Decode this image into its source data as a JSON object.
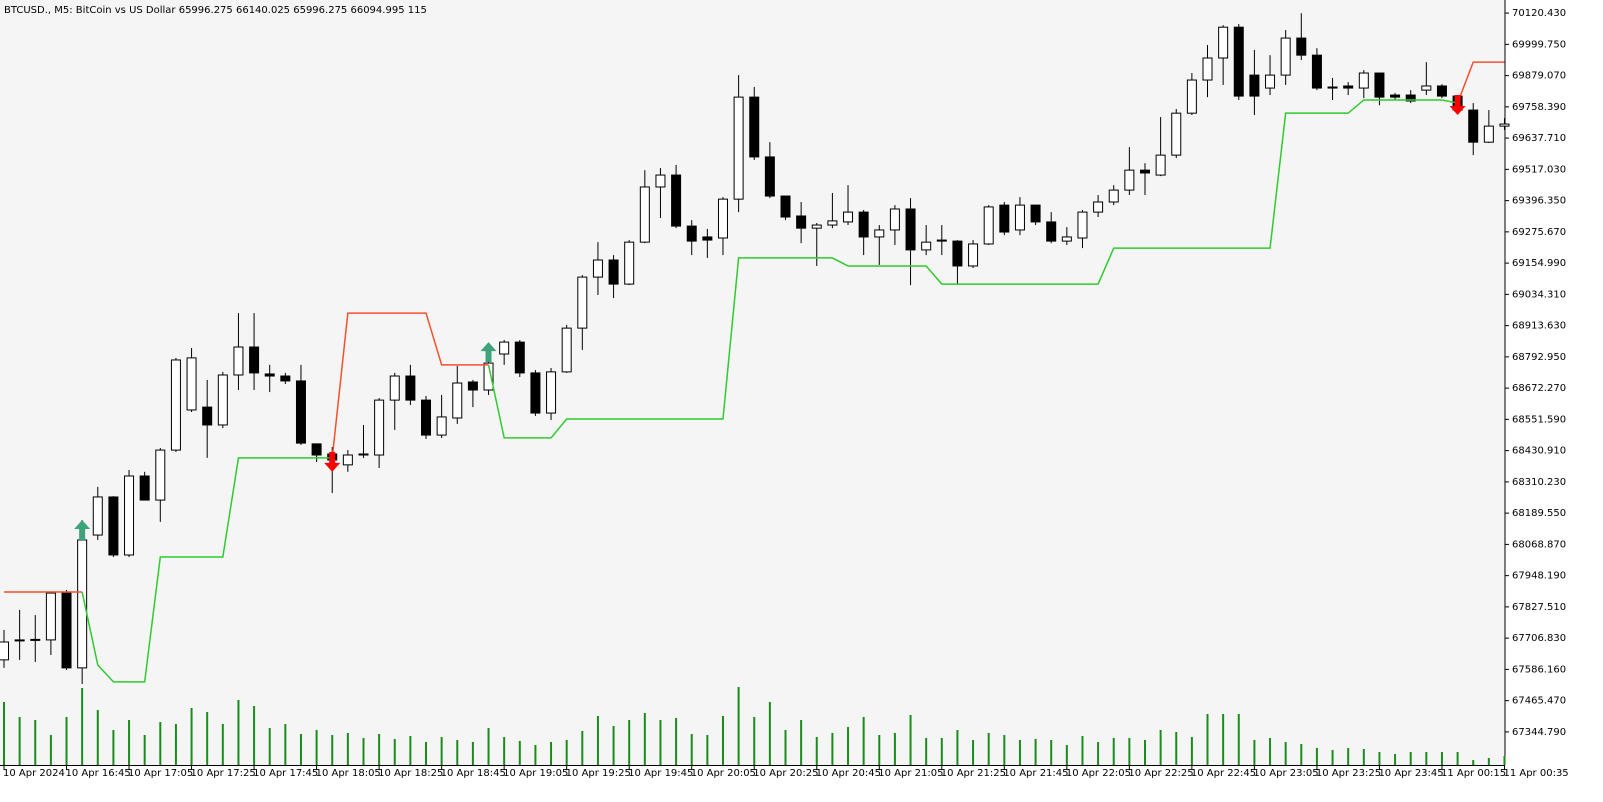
{
  "chart_data": {
    "type": "candlestick",
    "title": "BTCUSD., M5:  BitCoin vs US Dollar  65996.275 66140.025 65996.275 66094.995  115",
    "categories": [
      "10 Apr 2024",
      null,
      null,
      null,
      "10 Apr 16:45",
      null,
      null,
      null,
      "10 Apr 17:05",
      null,
      null,
      null,
      "10 Apr 17:25",
      null,
      null,
      null,
      "10 Apr 17:45",
      null,
      null,
      null,
      "10 Apr 18:05",
      null,
      null,
      null,
      "10 Apr 18:25",
      null,
      null,
      null,
      "10 Apr 18:45",
      null,
      null,
      null,
      "10 Apr 19:05",
      null,
      null,
      null,
      "10 Apr 19:25",
      null,
      null,
      null,
      "10 Apr 19:45",
      null,
      null,
      null,
      "10 Apr 20:05",
      null,
      null,
      null,
      "10 Apr 20:25",
      null,
      null,
      null,
      "10 Apr 20:45",
      null,
      null,
      null,
      "10 Apr 21:05",
      null,
      null,
      null,
      "10 Apr 21:25",
      null,
      null,
      null,
      "10 Apr 21:45",
      null,
      null,
      null,
      "10 Apr 22:05",
      null,
      null,
      null,
      "10 Apr 22:25",
      null,
      null,
      null,
      "10 Apr 22:45",
      null,
      null,
      null,
      "10 Apr 23:05",
      null,
      null,
      null,
      "10 Apr 23:25",
      null,
      null,
      null,
      "10 Apr 23:45",
      null,
      null,
      null,
      "11 Apr 00:15",
      null,
      null,
      null,
      "11 Apr 00:35"
    ],
    "open": [
      67623,
      67700,
      67700,
      67700,
      67881,
      67592,
      68105,
      68252,
      68028,
      68333,
      68240,
      68433,
      68588,
      68599,
      68530,
      68723,
      68831,
      68727,
      68719,
      68700,
      68457,
      68418,
      68376,
      68414,
      68414,
      68626,
      68719,
      68626,
      68491,
      68557,
      68696,
      68665,
      68804,
      68850,
      68731,
      68576,
      68735,
      68904,
      69101,
      69167,
      69074,
      69236,
      69449,
      69495,
      69298,
      69256,
      69252,
      69402,
      69796,
      69565,
      69414,
      69337,
      69290,
      69302,
      69314,
      69352,
      69256,
      69283,
      69364,
      69206,
      69240,
      69240,
      69144,
      69229,
      69379,
      69283,
      69379,
      69314,
      69240,
      69252,
      69352,
      69391,
      69437,
      69514,
      69495,
      69572,
      69734,
      69862,
      69947,
      70066,
      69881,
      69831,
      69881,
      70024,
      69958,
      69831,
      69839,
      69831,
      69889,
      69804,
      69804,
      69823,
      69839,
      69800,
      69746,
      69622,
      69684
    ],
    "high": [
      67739,
      67816,
      67796,
      67885,
      67893,
      68163,
      68291,
      68255,
      68356,
      68349,
      68441,
      68789,
      68827,
      68704,
      68735,
      68962,
      68962,
      68762,
      68731,
      68762,
      68457,
      68445,
      68433,
      68530,
      68634,
      68731,
      68762,
      68642,
      68646,
      68758,
      68704,
      68800,
      68858,
      68858,
      68742,
      68750,
      68916,
      69109,
      69236,
      69186,
      69244,
      69514,
      69522,
      69534,
      69321,
      69287,
      69410,
      69881,
      69835,
      69622,
      69414,
      69391,
      69310,
      69426,
      69456,
      69360,
      69302,
      69379,
      69406,
      69302,
      69302,
      69244,
      69244,
      69379,
      69391,
      69410,
      69379,
      69352,
      69294,
      69360,
      69418,
      69456,
      69603,
      69541,
      69719,
      69750,
      69889,
      69997,
      70074,
      70078,
      69978,
      69958,
      70055,
      70120,
      69985,
      69870,
      69854,
      69900,
      69889,
      69812,
      69823,
      69931,
      69846,
      69804,
      69773,
      69746,
      69715
    ],
    "low": [
      67592,
      67623,
      67615,
      67642,
      67584,
      67530,
      68086,
      68020,
      68020,
      68240,
      68156,
      68426,
      68580,
      68403,
      68518,
      68665,
      68665,
      68657,
      68688,
      68453,
      68387,
      68267,
      68349,
      68403,
      68364,
      68511,
      68607,
      68476,
      68480,
      68534,
      68599,
      68646,
      68762,
      68715,
      68565,
      68549,
      68731,
      68820,
      69032,
      69020,
      69070,
      69232,
      69329,
      69290,
      69186,
      69175,
      69186,
      69352,
      69553,
      69406,
      69321,
      69232,
      69144,
      69290,
      69302,
      69186,
      69148,
      69225,
      69070,
      69186,
      69186,
      69074,
      69136,
      69225,
      69263,
      69263,
      69302,
      69232,
      69225,
      69213,
      69333,
      69379,
      69418,
      69418,
      69491,
      69561,
      69727,
      69796,
      69843,
      69785,
      69727,
      69804,
      69843,
      69939,
      69823,
      69785,
      69804,
      69792,
      69765,
      69785,
      69773,
      69804,
      69792,
      69738,
      69572,
      69619,
      69669
    ],
    "close": [
      67692,
      67698,
      67702,
      67881,
      67592,
      68086,
      68252,
      68028,
      68333,
      68240,
      68433,
      68781,
      68789,
      68530,
      68723,
      68831,
      68731,
      68719,
      68700,
      68460,
      68414,
      68395,
      68414,
      68418,
      68626,
      68719,
      68626,
      68491,
      68561,
      68692,
      68665,
      68769,
      68850,
      68731,
      68576,
      68735,
      68904,
      69101,
      69167,
      69074,
      69236,
      69449,
      69495,
      69298,
      69240,
      69244,
      69402,
      69796,
      69565,
      69414,
      69333,
      69290,
      69302,
      69318,
      69352,
      69256,
      69283,
      69364,
      69206,
      69236,
      69244,
      69144,
      69229,
      69372,
      69275,
      69379,
      69314,
      69240,
      69256,
      69352,
      69391,
      69437,
      69514,
      69503,
      69572,
      69734,
      69862,
      69947,
      70066,
      69800,
      69800,
      69881,
      70024,
      69958,
      69831,
      69835,
      69831,
      69889,
      69796,
      69796,
      69781,
      69839,
      69800,
      69746,
      69622,
      69684,
      69692
    ],
    "volume": [
      63,
      48,
      45,
      30,
      48,
      77,
      55,
      35,
      45,
      30,
      43,
      41,
      57,
      53,
      41,
      65,
      59,
      37,
      41,
      31,
      35,
      30,
      32,
      27,
      31,
      26,
      29,
      23,
      28,
      25,
      23,
      37,
      28,
      24,
      20,
      23,
      25,
      34,
      49,
      39,
      45,
      52,
      45,
      47,
      31,
      30,
      49,
      78,
      48,
      63,
      35,
      45,
      28,
      32,
      38,
      48,
      30,
      32,
      50,
      27,
      27,
      35,
      25,
      32,
      30,
      25,
      26,
      25,
      20,
      29,
      23,
      27,
      27,
      25,
      35,
      33,
      28,
      51,
      51,
      51,
      25,
      27,
      23,
      21,
      17,
      15,
      17,
      16,
      13,
      11,
      13,
      13,
      13,
      13,
      5,
      7,
      9
    ],
    "volume_color": "#1a8c1a",
    "up_color": "#ffffff",
    "down_color": "#000000",
    "series": [
      {
        "color": "#f5502e",
        "values": [
          67885,
          67885,
          67885,
          67885,
          67885,
          67885,
          null,
          null,
          null,
          null,
          null,
          null,
          null,
          null,
          null,
          null,
          null,
          null,
          null,
          null,
          null,
          68403,
          68962,
          68962,
          68962,
          68962,
          68962,
          68962,
          68762,
          68762,
          68762,
          68762,
          null,
          null,
          null,
          null,
          null,
          null,
          null,
          null,
          null,
          null,
          null,
          null,
          null,
          null,
          null,
          null,
          null,
          null,
          null,
          null,
          null,
          null,
          null,
          null,
          null,
          null,
          null,
          null,
          null,
          null,
          null,
          null,
          null,
          null,
          null,
          null,
          null,
          null,
          null,
          null,
          null,
          null,
          null,
          null,
          null,
          null,
          null,
          null,
          null,
          null,
          null,
          null,
          null,
          null,
          null,
          null,
          null,
          null,
          null,
          null,
          null,
          69773,
          69931,
          69931,
          69931
        ]
      },
      {
        "color": "#2ecc2e",
        "values": [
          null,
          null,
          null,
          null,
          null,
          67885,
          67603,
          67538,
          67538,
          67538,
          68020,
          68020,
          68020,
          68020,
          68020,
          68403,
          68403,
          68403,
          68403,
          68403,
          68403,
          68403,
          null,
          null,
          null,
          null,
          null,
          null,
          null,
          null,
          null,
          68762,
          68480,
          68480,
          68480,
          68480,
          68553,
          68553,
          68553,
          68553,
          68553,
          68553,
          68553,
          68553,
          68553,
          68553,
          68553,
          69175,
          69175,
          69175,
          69175,
          69175,
          69175,
          69175,
          69144,
          69144,
          69144,
          69144,
          69144,
          69144,
          69074,
          69074,
          69074,
          69074,
          69074,
          69074,
          69074,
          69074,
          69074,
          69074,
          69074,
          69213,
          69213,
          69213,
          69213,
          69213,
          69213,
          69213,
          69213,
          69213,
          69213,
          69213,
          69734,
          69734,
          69734,
          69734,
          69734,
          69785,
          69785,
          69785,
          69785,
          69785,
          69785,
          69773,
          null,
          null,
          null
        ]
      }
    ],
    "arrows": [
      {
        "index": 5,
        "price": 68163,
        "direction": "up",
        "color": "#3fa27a"
      },
      {
        "index": 21,
        "price": 68349,
        "direction": "down",
        "color": "#ff0000"
      },
      {
        "index": 31,
        "price": 68850,
        "direction": "up",
        "color": "#3fa27a"
      },
      {
        "index": 93,
        "price": 69727,
        "direction": "down",
        "color": "#ff0000"
      }
    ],
    "ylim": [
      67217,
      70171
    ],
    "yticks": [
      {
        "value": 70120.43,
        "label": "70120.430"
      },
      {
        "value": 69999.75,
        "label": "69999.750"
      },
      {
        "value": 69879.07,
        "label": "69879.070"
      },
      {
        "value": 69758.39,
        "label": "69758.390"
      },
      {
        "value": 69637.71,
        "label": "69637.710"
      },
      {
        "value": 69517.03,
        "label": "69517.030"
      },
      {
        "value": 69396.35,
        "label": "69396.350"
      },
      {
        "value": 69275.67,
        "label": "69275.670"
      },
      {
        "value": 69154.99,
        "label": "69154.990"
      },
      {
        "value": 69034.31,
        "label": "69034.310"
      },
      {
        "value": 68913.63,
        "label": "68913.630"
      },
      {
        "value": 68792.95,
        "label": "68792.950"
      },
      {
        "value": 68672.27,
        "label": "68672.270"
      },
      {
        "value": 68551.59,
        "label": "68551.590"
      },
      {
        "value": 68430.91,
        "label": "68430.910"
      },
      {
        "value": 68310.23,
        "label": "68310.230"
      },
      {
        "value": 68189.55,
        "label": "68189.550"
      },
      {
        "value": 68068.87,
        "label": "68068.870"
      },
      {
        "value": 67948.19,
        "label": "67948.190"
      },
      {
        "value": 67827.51,
        "label": "67827.510"
      },
      {
        "value": 67706.83,
        "label": "67706.830"
      },
      {
        "value": 67586.16,
        "label": "67586.160"
      },
      {
        "value": 67465.47,
        "label": "67465.470"
      },
      {
        "value": 67344.79,
        "label": "67344.790"
      }
    ],
    "background": "#f5f5f5"
  }
}
